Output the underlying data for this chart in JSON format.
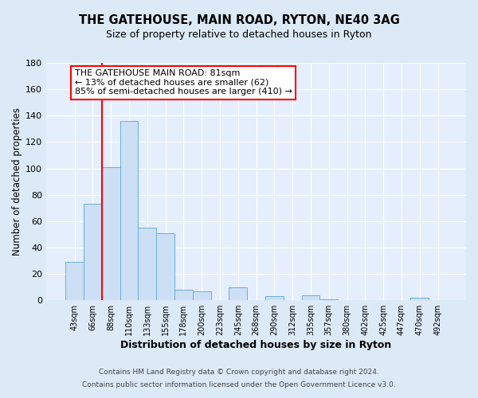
{
  "title": "THE GATEHOUSE, MAIN ROAD, RYTON, NE40 3AG",
  "subtitle": "Size of property relative to detached houses in Ryton",
  "xlabel": "Distribution of detached houses by size in Ryton",
  "ylabel": "Number of detached properties",
  "bar_labels": [
    "43sqm",
    "66sqm",
    "88sqm",
    "110sqm",
    "133sqm",
    "155sqm",
    "178sqm",
    "200sqm",
    "223sqm",
    "245sqm",
    "268sqm",
    "290sqm",
    "312sqm",
    "335sqm",
    "357sqm",
    "380sqm",
    "402sqm",
    "425sqm",
    "447sqm",
    "470sqm",
    "492sqm"
  ],
  "bar_values": [
    29,
    73,
    101,
    136,
    55,
    51,
    8,
    7,
    0,
    10,
    0,
    3,
    0,
    4,
    1,
    0,
    0,
    0,
    0,
    2,
    0
  ],
  "bar_color": "#ccdff5",
  "bar_edge_color": "#6aaed6",
  "ylim": [
    0,
    180
  ],
  "yticks": [
    0,
    20,
    40,
    60,
    80,
    100,
    120,
    140,
    160,
    180
  ],
  "red_line_index": 1.5,
  "annotation_title": "THE GATEHOUSE MAIN ROAD: 81sqm",
  "annotation_line1": "← 13% of detached houses are smaller (62)",
  "annotation_line2": "85% of semi-detached houses are larger (410) →",
  "footer1": "Contains HM Land Registry data © Crown copyright and database right 2024.",
  "footer2": "Contains public sector information licensed under the Open Government Licence v3.0.",
  "fig_bg_color": "#dce9f7",
  "plot_bg_color": "#e4eefc",
  "grid_color": "#ffffff",
  "title_fontsize": 10.5,
  "subtitle_fontsize": 9,
  "ylabel_fontsize": 8.5,
  "xlabel_fontsize": 9
}
